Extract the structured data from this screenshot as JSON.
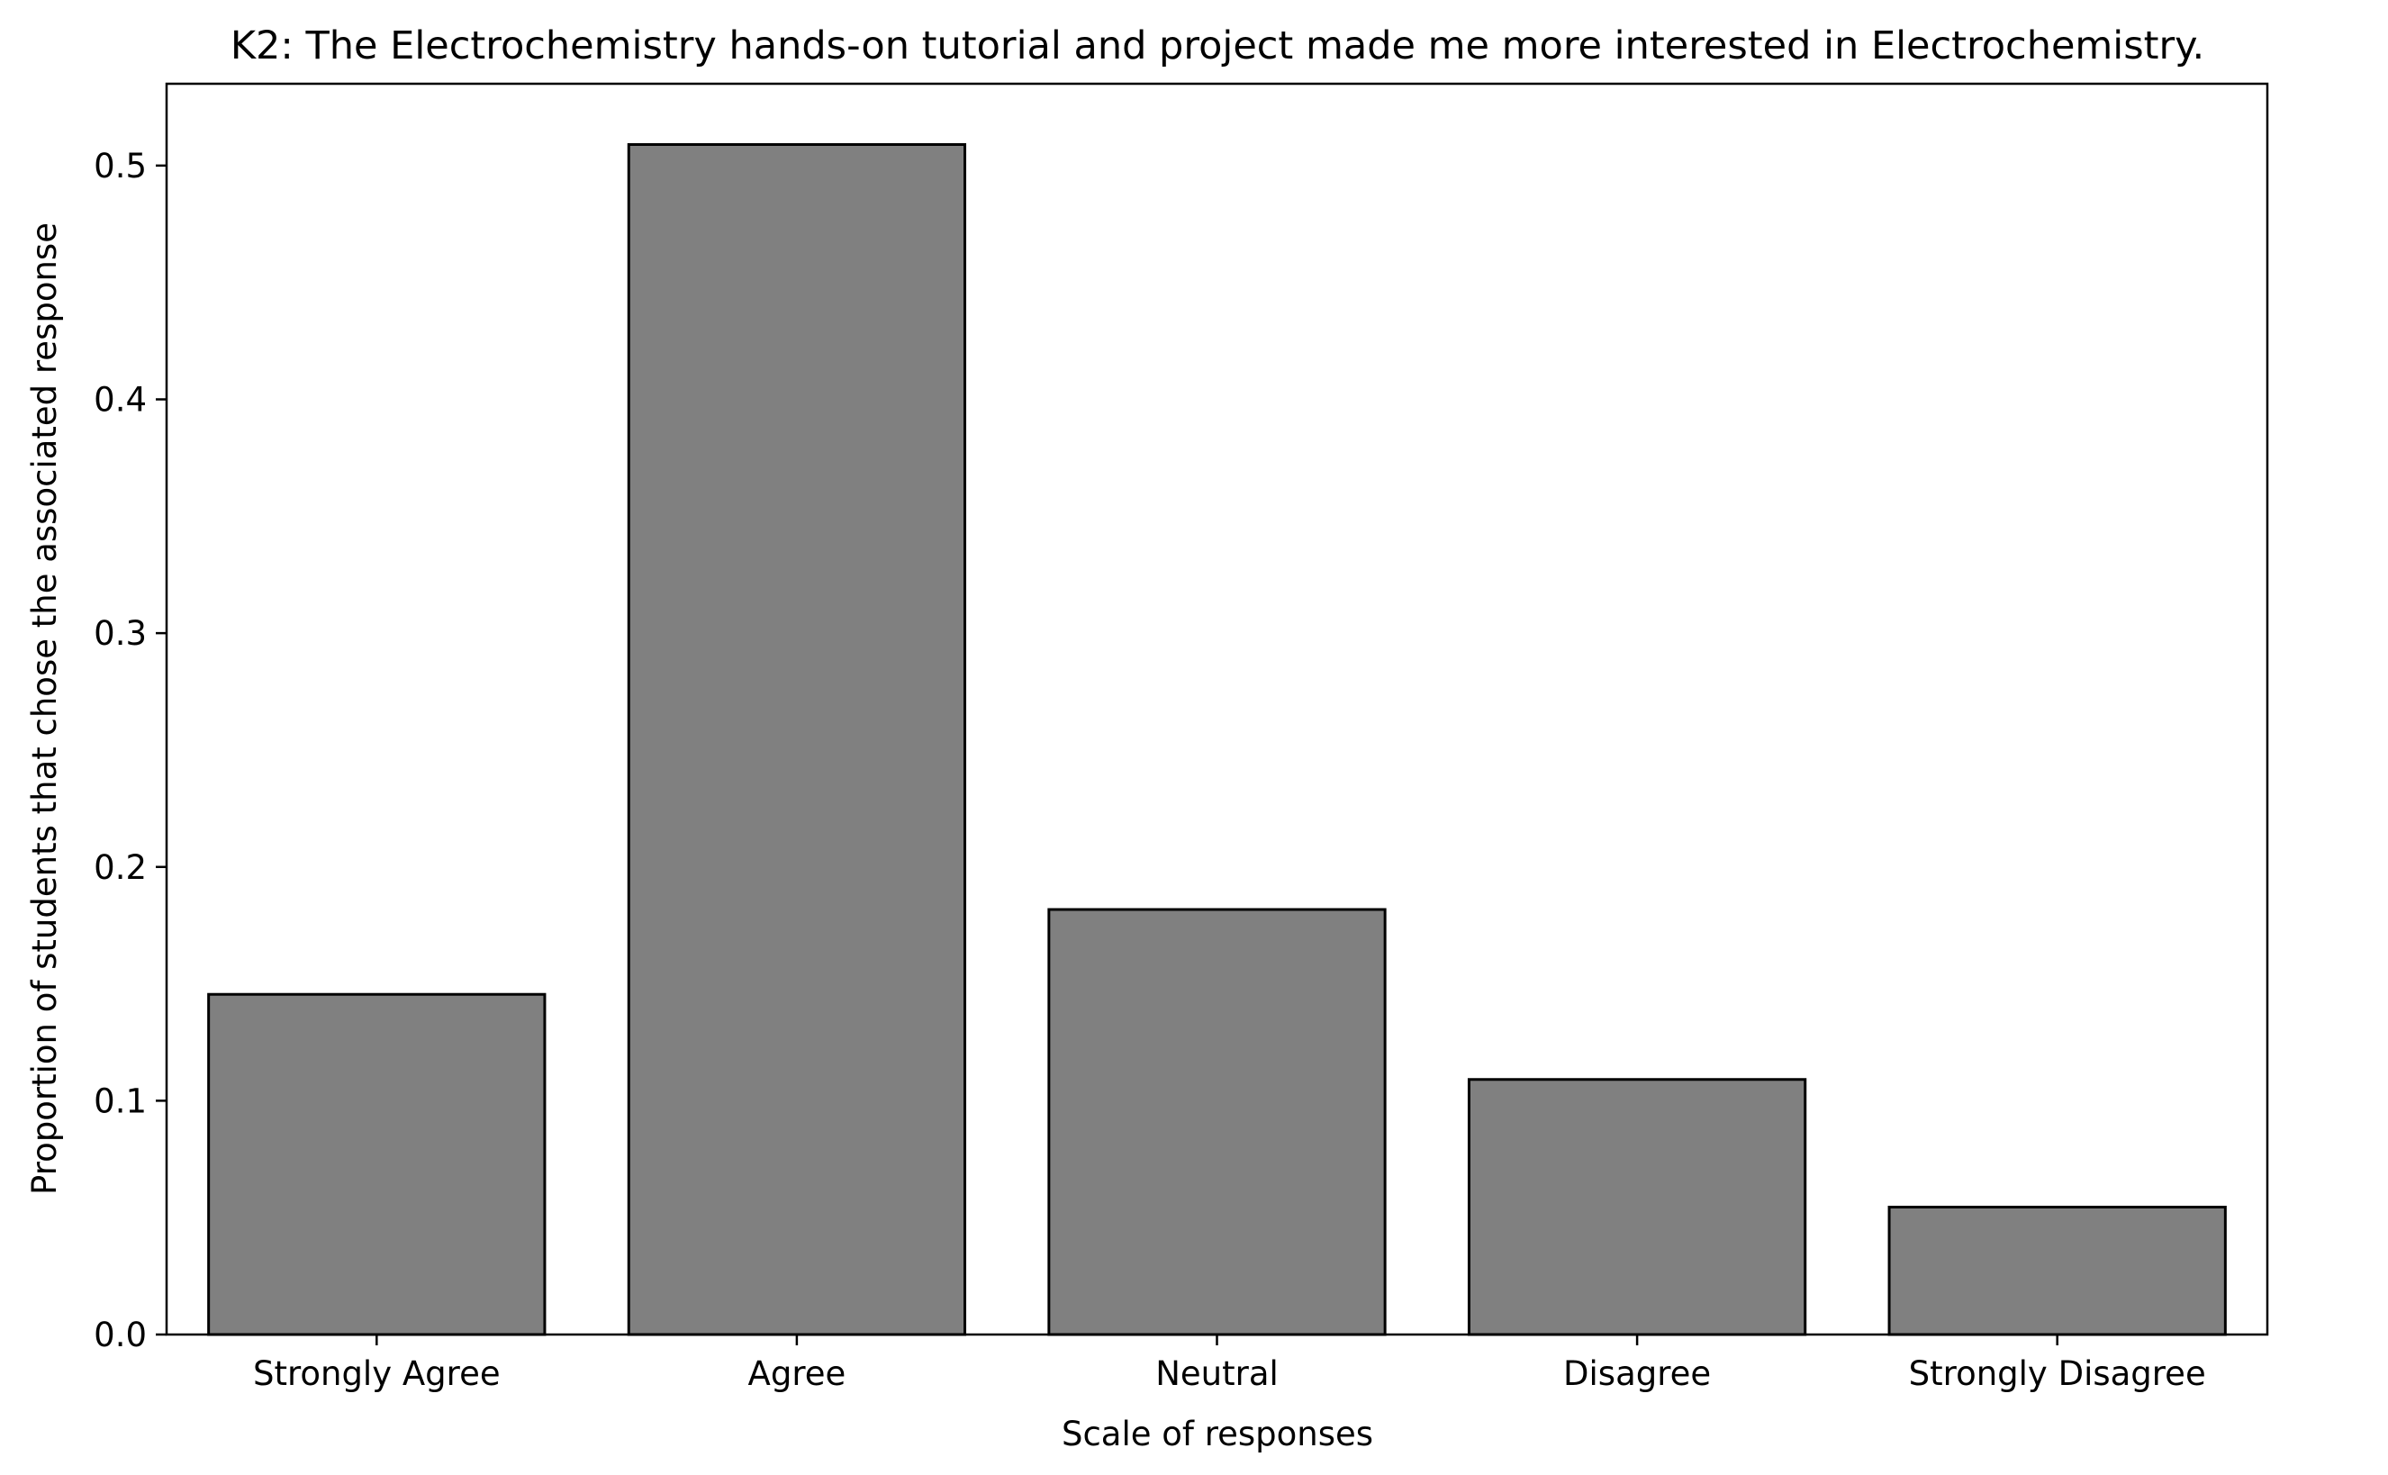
{
  "chart_data": {
    "type": "bar",
    "title": "K2: The Electrochemistry hands-on tutorial and project made me more interested in Electrochemistry.",
    "xlabel": "Scale of responses",
    "ylabel": "Proportion of students that chose the associated response",
    "categories": [
      "Strongly Agree",
      "Agree",
      "Neutral",
      "Disagree",
      "Strongly Disagree"
    ],
    "values": [
      0.1455,
      0.509,
      0.1818,
      0.1091,
      0.0545
    ],
    "ylim": [
      0,
      0.535
    ],
    "yticks": [
      0.0,
      0.1,
      0.2,
      0.3,
      0.4,
      0.5
    ],
    "ytick_labels": [
      "0.0",
      "0.1",
      "0.2",
      "0.3",
      "0.4",
      "0.5"
    ],
    "bar_color": "#808080",
    "edge_color": "#000000",
    "grid": false,
    "legend": "none"
  }
}
